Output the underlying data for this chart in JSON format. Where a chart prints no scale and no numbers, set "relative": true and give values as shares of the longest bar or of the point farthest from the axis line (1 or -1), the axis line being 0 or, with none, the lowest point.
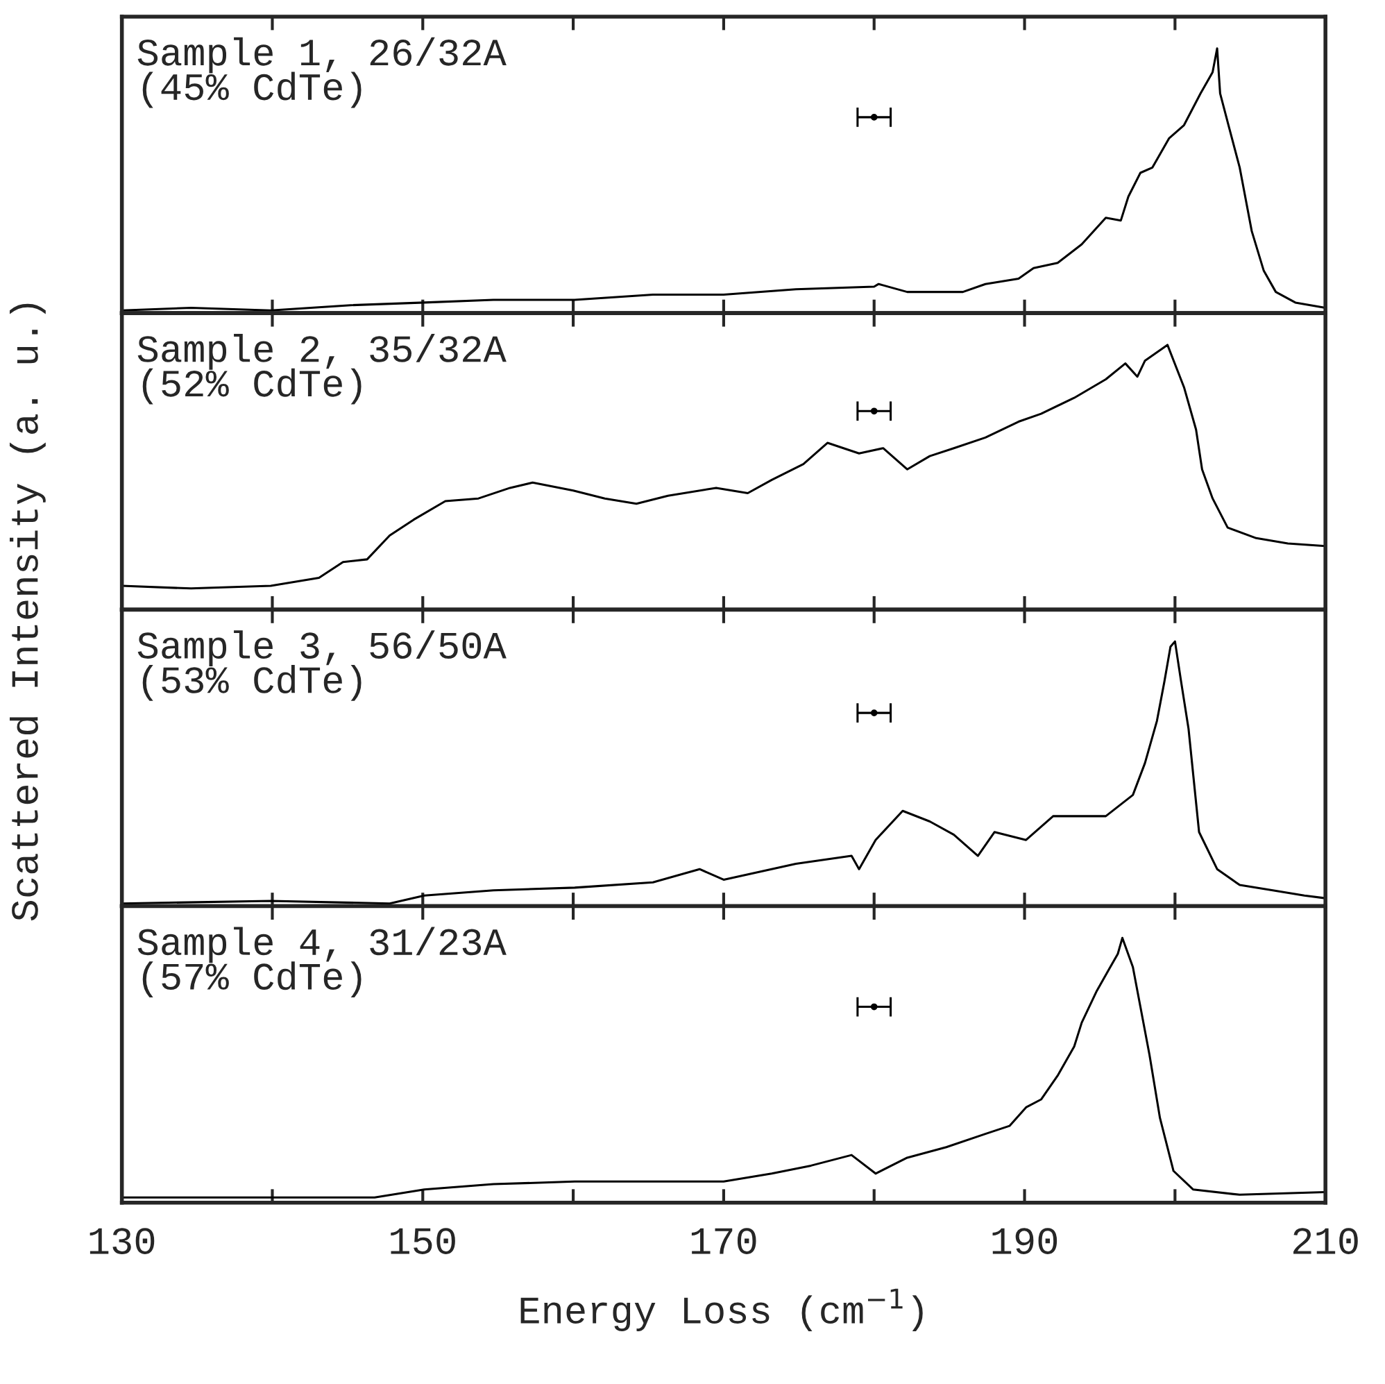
{
  "chart_data": [
    {
      "type": "line",
      "relative": true,
      "ylabel": "Scattered Intensity (a. u.)",
      "annotations": [
        "Sample 1, 26/32A",
        "(45% CdTe)"
      ],
      "xlim": [
        130,
        210
      ],
      "xticks": [
        130,
        {
          "value": 140,
          "label": null
        },
        150,
        {
          "value": 160,
          "label": null
        },
        170,
        {
          "value": 180,
          "label": null
        },
        190,
        {
          "value": 200,
          "label": null
        },
        210
      ],
      "tick_labels": false,
      "grid": false,
      "legend": false,
      "series": [
        {
          "color": "#000000",
          "x": [
            130,
            134.6,
            139.9,
            145.2,
            150.1,
            154.7,
            160.1,
            165.3,
            170.0,
            174.8,
            180.0,
            180.3,
            182.2,
            185.9,
            187.4,
            189.6,
            190.6,
            192.2,
            193.8,
            195.4,
            196.4,
            196.9,
            197.7,
            198.5,
            199.6,
            200.6,
            201.7,
            202.2,
            202.5,
            202.8,
            203.0,
            203.6,
            204.3,
            205.1,
            205.9,
            206.7,
            208.0,
            210.0
          ],
          "values": [
            0.01,
            0.02,
            0.01,
            0.03,
            0.04,
            0.05,
            0.05,
            0.07,
            0.07,
            0.09,
            0.1,
            0.11,
            0.08,
            0.08,
            0.11,
            0.13,
            0.17,
            0.19,
            0.26,
            0.36,
            0.35,
            0.44,
            0.53,
            0.55,
            0.66,
            0.71,
            0.83,
            0.88,
            0.91,
            1.0,
            0.83,
            0.7,
            0.55,
            0.31,
            0.16,
            0.08,
            0.04,
            0.02
          ]
        },
        {
          "type": "scatter",
          "marker": "circle",
          "color": "#000000",
          "x": [
            180
          ],
          "values": [
            0.74
          ],
          "xerrors": [
            1.1
          ]
        }
      ]
    },
    {
      "type": "line",
      "relative": true,
      "annotations": [
        "Sample 2, 35/32A",
        "(52% CdTe)"
      ],
      "xlim": [
        130,
        210
      ],
      "xticks": [
        130,
        {
          "value": 140,
          "label": null
        },
        150,
        {
          "value": 160,
          "label": null
        },
        170,
        {
          "value": 180,
          "label": null
        },
        190,
        {
          "value": 200,
          "label": null
        },
        210
      ],
      "tick_labels": false,
      "grid": false,
      "legend": false,
      "series": [
        {
          "color": "#000000",
          "x": [
            130,
            134.6,
            139.9,
            143.1,
            144.7,
            146.3,
            147.8,
            149.4,
            151.5,
            153.7,
            155.8,
            157.3,
            160.0,
            162.1,
            164.2,
            166.3,
            169.5,
            171.6,
            173.2,
            175.3,
            176.9,
            179.0,
            180.6,
            182.2,
            183.7,
            185.3,
            187.4,
            189.6,
            191.1,
            193.3,
            195.4,
            196.7,
            197.5,
            198.0,
            199.5,
            200.6,
            201.4,
            201.8,
            202.5,
            203.5,
            205.4,
            207.5,
            210.0
          ],
          "values": [
            0.09,
            0.08,
            0.09,
            0.12,
            0.18,
            0.19,
            0.28,
            0.34,
            0.41,
            0.42,
            0.46,
            0.48,
            0.45,
            0.42,
            0.4,
            0.43,
            0.46,
            0.44,
            0.49,
            0.55,
            0.63,
            0.59,
            0.61,
            0.53,
            0.58,
            0.61,
            0.65,
            0.71,
            0.74,
            0.8,
            0.87,
            0.93,
            0.88,
            0.94,
            1.0,
            0.84,
            0.68,
            0.53,
            0.42,
            0.31,
            0.27,
            0.25,
            0.24
          ]
        },
        {
          "type": "scatter",
          "marker": "circle",
          "color": "#000000",
          "x": [
            180
          ],
          "values": [
            0.75
          ],
          "xerrors": [
            1.1
          ]
        }
      ]
    },
    {
      "type": "line",
      "relative": true,
      "annotations": [
        "Sample 3, 56/50A",
        "(53% CdTe)"
      ],
      "xlim": [
        130,
        210
      ],
      "xticks": [
        130,
        {
          "value": 140,
          "label": null
        },
        150,
        {
          "value": 160,
          "label": null
        },
        170,
        {
          "value": 180,
          "label": null
        },
        190,
        {
          "value": 200,
          "label": null
        },
        210
      ],
      "tick_labels": false,
      "grid": false,
      "legend": false,
      "series": [
        {
          "color": "#000000",
          "x": [
            130,
            139.9,
            147.8,
            150.1,
            154.7,
            160.1,
            165.3,
            168.4,
            170.0,
            174.8,
            178.5,
            179.0,
            180.1,
            181.9,
            183.7,
            185.3,
            186.9,
            188.0,
            190.1,
            191.9,
            195.4,
            197.2,
            198.0,
            198.8,
            199.3,
            199.7,
            200.0,
            200.4,
            200.9,
            201.6,
            202.8,
            204.3,
            206.5,
            208.6,
            210.0
          ],
          "values": [
            0.01,
            0.02,
            0.01,
            0.04,
            0.06,
            0.07,
            0.09,
            0.14,
            0.1,
            0.16,
            0.19,
            0.14,
            0.25,
            0.36,
            0.32,
            0.27,
            0.19,
            0.28,
            0.25,
            0.34,
            0.34,
            0.42,
            0.54,
            0.7,
            0.85,
            0.98,
            1.0,
            0.85,
            0.67,
            0.28,
            0.14,
            0.08,
            0.06,
            0.04,
            0.03
          ]
        },
        {
          "type": "scatter",
          "marker": "circle",
          "color": "#000000",
          "x": [
            180
          ],
          "values": [
            0.73
          ],
          "xerrors": [
            1.1
          ]
        }
      ]
    },
    {
      "type": "line",
      "relative": true,
      "xlabel": "Energy Loss (cm$^{−1}$)",
      "annotations": [
        "Sample 4, 31/23A",
        "(57% CdTe)"
      ],
      "xlim": [
        130,
        210
      ],
      "xticks": [
        130,
        {
          "value": 140,
          "label": null
        },
        150,
        {
          "value": 160,
          "label": null
        },
        170,
        {
          "value": 180,
          "label": null
        },
        190,
        {
          "value": 200,
          "label": null
        },
        210
      ],
      "tick_labels": "x",
      "grid": false,
      "legend": false,
      "series": [
        {
          "color": "#000000",
          "x": [
            130,
            139.9,
            146.8,
            150.1,
            154.7,
            160.1,
            165.3,
            170.0,
            173.2,
            175.8,
            178.5,
            180.1,
            182.2,
            184.8,
            187.4,
            189.0,
            190.1,
            191.1,
            192.2,
            193.3,
            193.8,
            194.8,
            195.6,
            196.2,
            196.5,
            197.2,
            197.7,
            198.3,
            199.0,
            199.9,
            201.2,
            204.3,
            210.0
          ],
          "values": [
            0.02,
            0.02,
            0.02,
            0.05,
            0.07,
            0.08,
            0.08,
            0.08,
            0.11,
            0.14,
            0.18,
            0.11,
            0.17,
            0.21,
            0.26,
            0.29,
            0.36,
            0.39,
            0.48,
            0.59,
            0.68,
            0.8,
            0.88,
            0.94,
            1.0,
            0.89,
            0.74,
            0.56,
            0.32,
            0.12,
            0.05,
            0.03,
            0.04
          ]
        },
        {
          "type": "scatter",
          "marker": "circle",
          "color": "#000000",
          "x": [
            180
          ],
          "values": [
            0.74
          ],
          "xerrors": [
            1.1
          ]
        }
      ]
    }
  ]
}
